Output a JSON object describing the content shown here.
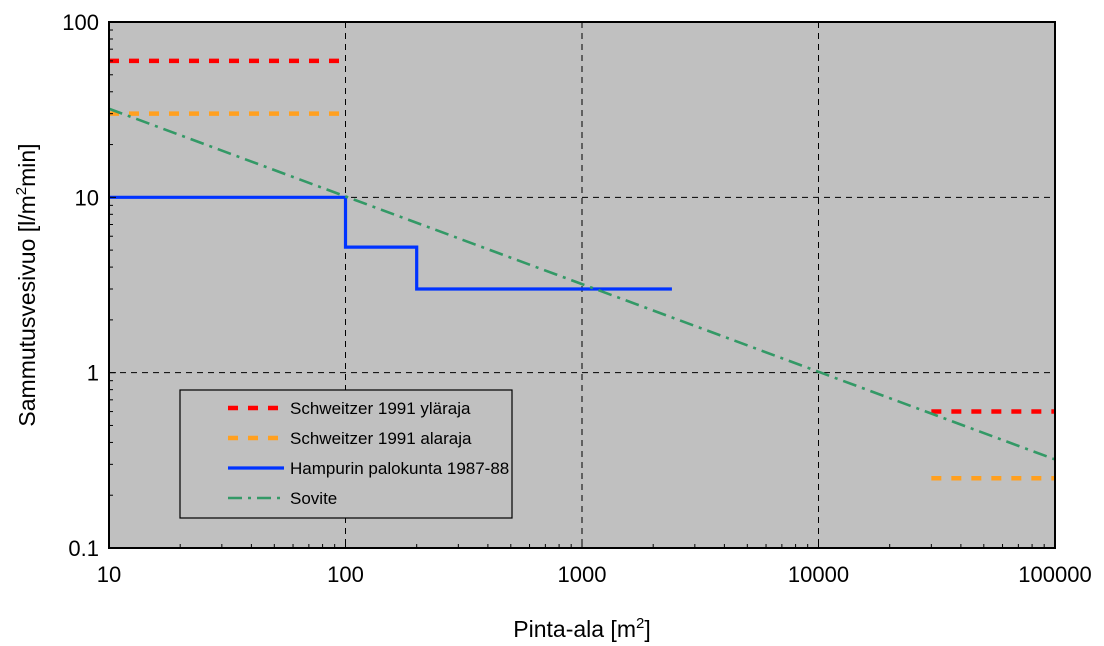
{
  "chart_data": {
    "type": "line",
    "xscale": "log",
    "yscale": "log",
    "xlim": [
      10,
      100000
    ],
    "ylim": [
      0.1,
      100
    ],
    "grid": true,
    "plot_background": "#c0c0c0",
    "legend_position": "bottom-left",
    "xlabel": "Pinta-ala  [m2]",
    "ylabel": "Sammutusvesivuo  [l/m2min]",
    "xticks": [
      10,
      100,
      1000,
      10000,
      100000
    ],
    "xtick_labels": [
      "10",
      "100",
      "1000",
      "10000",
      "100000"
    ],
    "yticks": [
      0.1,
      1,
      10,
      100
    ],
    "ytick_labels": [
      "0.1",
      "1",
      "10",
      "100"
    ],
    "series": [
      {
        "name": "Schweitzer 1991 yläraja",
        "color": "#ff0000",
        "dash": "dashed",
        "segments": [
          {
            "x": [
              10,
              100
            ],
            "y": [
              60,
              60
            ]
          },
          {
            "x": [
              30000,
              100000
            ],
            "y": [
              0.6,
              0.6
            ]
          }
        ]
      },
      {
        "name": "Schweitzer 1991 alaraja",
        "color": "#ffa020",
        "dash": "dashed",
        "segments": [
          {
            "x": [
              10,
              100
            ],
            "y": [
              30,
              30
            ]
          },
          {
            "x": [
              30000,
              100000
            ],
            "y": [
              0.25,
              0.25
            ]
          }
        ]
      },
      {
        "name": "Hampurin palokunta 1987-88",
        "color": "#0033ff",
        "dash": "solid",
        "segments": [
          {
            "x": [
              10,
              100,
              100,
              200,
              200,
              2400
            ],
            "y": [
              10,
              10,
              5.2,
              5.2,
              3,
              3
            ]
          }
        ]
      },
      {
        "name": "Sovite",
        "color": "#339966",
        "dash": "dashdot",
        "segments": [
          {
            "x": [
              10,
              100000
            ],
            "y": [
              32,
              0.32
            ]
          }
        ]
      }
    ]
  },
  "axis_text": {
    "xlabel_main": "Pinta-ala  [m",
    "xlabel_sup": "2",
    "xlabel_end": "]",
    "ylabel_main": "Sammutusvesivuo  [l/m",
    "ylabel_sup": "2",
    "ylabel_end": "min]"
  }
}
